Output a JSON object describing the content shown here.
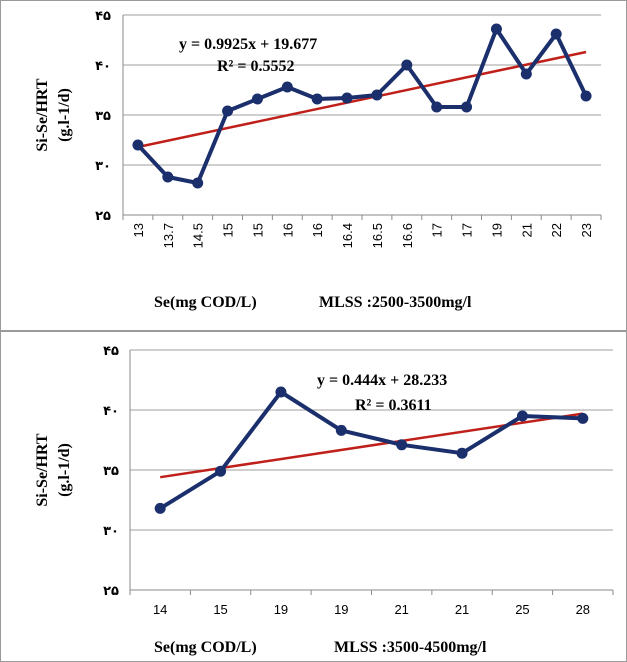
{
  "chart_data": [
    {
      "type": "line",
      "categories": [
        "13",
        "13.7",
        "14.5",
        "15",
        "15",
        "16",
        "16",
        "16.4",
        "16.5",
        "16.6",
        "17",
        "17",
        "19",
        "21",
        "22",
        "23"
      ],
      "series": [
        {
          "values": [
            32.0,
            28.8,
            28.2,
            35.4,
            36.6,
            37.8,
            36.6,
            36.7,
            37.0,
            40.0,
            35.8,
            35.8,
            43.6,
            39.1,
            43.1,
            36.9
          ]
        }
      ],
      "trendline": {
        "type": "linear",
        "equation": "y = 0.9925x + 19.677",
        "r2": "R² = 0.5552",
        "start": 31.8,
        "end": 41.3
      },
      "ylabel": [
        "Si-Se/HRT",
        "(g.l-1/d)"
      ],
      "xlabel": "Se(mg COD/L)",
      "note": "MLSS :2500-3500mg/l",
      "yticks": [
        "۲۵",
        "۳۰",
        "۳۵",
        "۴۰",
        "۴۵"
      ],
      "ylim": [
        25,
        45
      ],
      "grid": true,
      "series_color": "#1a2f6b",
      "trend_color": "#c0201a"
    },
    {
      "type": "line",
      "categories": [
        "14",
        "15",
        "19",
        "19",
        "21",
        "21",
        "25",
        "28"
      ],
      "series": [
        {
          "values": [
            31.8,
            34.9,
            41.5,
            38.3,
            37.1,
            36.4,
            39.5,
            39.3
          ]
        }
      ],
      "trendline": {
        "type": "linear",
        "equation": "y = 0.444x + 28.233",
        "r2": "R² = 0.3611",
        "start": 34.4,
        "end": 39.7
      },
      "ylabel": [
        "Si-Se/HRT",
        "(g.l-1/d)"
      ],
      "xlabel": "Se(mg COD/L)",
      "note": "MLSS :3500-4500mg/l",
      "yticks": [
        "۲۵",
        "۳۰",
        "۳۵",
        "۴۰",
        "۴۵"
      ],
      "ylim": [
        25,
        45
      ],
      "grid": true,
      "series_color": "#1a2f6b",
      "trend_color": "#c0201a"
    }
  ]
}
